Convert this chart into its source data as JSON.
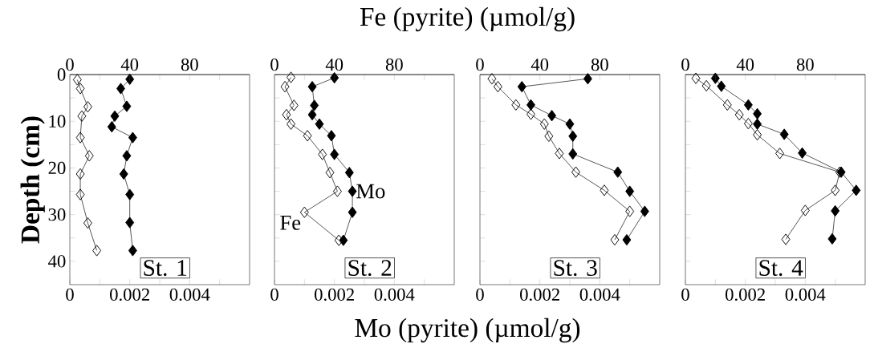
{
  "chart_data": [
    {
      "type": "line",
      "title": "St. 1",
      "ylabel": "Depth (cm)",
      "x2label": "Fe (pyrite) (µmol/g)",
      "xlabel": "Mo (pyrite) (µmol/g)",
      "marker": "diamond",
      "xlim": [
        0,
        0.006
      ],
      "xticks": [
        0,
        {
          "value": 0.001,
          "label": null
        },
        0.002,
        {
          "value": 0.003,
          "label": null
        },
        0.004,
        {
          "value": 0.005,
          "label": null
        }
      ],
      "x2lim": [
        0,
        120
      ],
      "x2ticks": [
        0,
        {
          "value": 20,
          "label": null
        },
        40,
        {
          "value": 60,
          "label": null
        },
        80,
        {
          "value": 100,
          "label": null
        }
      ],
      "ylim": [
        45,
        0
      ],
      "yticks": [
        0,
        {
          "value": 5,
          "label": null
        },
        10,
        {
          "value": 15,
          "label": null
        },
        20,
        {
          "value": 25,
          "label": null
        },
        30,
        {
          "value": 35,
          "label": null
        },
        40
      ],
      "series": [
        {
          "color": "#000000",
          "x": [
            0.002,
            0.0017,
            0.0019,
            0.0015,
            0.0014,
            0.0021,
            0.0019,
            0.0018,
            0.002,
            0.002,
            0.0021
          ],
          "values": [
            1.0,
            3.0,
            6.8,
            8.9,
            11.2,
            13.5,
            17.4,
            21.3,
            25.7,
            31.7,
            37.7
          ]
        },
        {
          "color": "#000000",
          "axis": "x2",
          "x": [
            5,
            7,
            12,
            8,
            7,
            13,
            7,
            7,
            12,
            18
          ],
          "values": [
            1.1,
            3.0,
            6.9,
            8.9,
            13.5,
            17.4,
            21.3,
            25.7,
            31.8,
            37.7
          ]
        }
      ]
    },
    {
      "type": "line",
      "title": "St. 2",
      "marker": "diamond",
      "tick_labels": "x",
      "xlim": [
        0,
        0.006
      ],
      "xticks": [
        0,
        {
          "value": 0.001,
          "label": null
        },
        0.002,
        {
          "value": 0.003,
          "label": null
        },
        0.004,
        {
          "value": 0.005,
          "label": null
        }
      ],
      "x2lim": [
        0,
        120
      ],
      "x2ticks": [
        0,
        {
          "value": 20,
          "label": null
        },
        40,
        {
          "value": 60,
          "label": null
        },
        80,
        {
          "value": 100,
          "label": null
        }
      ],
      "ylim": [
        45,
        0
      ],
      "yticks": [
        0,
        5,
        10,
        15,
        20,
        25,
        30,
        35,
        40
      ],
      "annotations": [
        {
          "text": "Mo",
          "x": 0.0026,
          "y": 25.0
        },
        {
          "text": "Fe",
          "x": 0.001,
          "y": 29.5
        }
      ],
      "series": [
        {
          "color": "#000000",
          "x": [
            0.002,
            0.00126,
            0.00133,
            0.00126,
            0.0015,
            0.0019,
            0.002,
            0.0025,
            0.0026,
            0.0026,
            0.0023
          ],
          "values": [
            0.7,
            2.6,
            6.6,
            8.6,
            10.6,
            13.1,
            17.1,
            21.0,
            25.0,
            29.5,
            35.5
          ]
        },
        {
          "color": "#000000",
          "axis": "x2",
          "x": [
            11,
            7,
            13,
            8,
            11,
            22,
            32,
            37,
            42,
            20,
            43
          ],
          "values": [
            0.6,
            2.6,
            6.6,
            8.6,
            10.6,
            13.1,
            17.1,
            21.0,
            25.0,
            29.5,
            35.5
          ]
        }
      ]
    },
    {
      "type": "line",
      "title": "St. 3",
      "marker": "diamond",
      "tick_labels": "x",
      "xlim": [
        0,
        0.006
      ],
      "xticks": [
        0,
        {
          "value": 0.001,
          "label": null
        },
        0.002,
        {
          "value": 0.003,
          "label": null
        },
        0.004,
        {
          "value": 0.005,
          "label": null
        }
      ],
      "x2lim": [
        0,
        120
      ],
      "x2ticks": [
        0,
        {
          "value": 20,
          "label": null
        },
        40,
        {
          "value": 60,
          "label": null
        },
        80,
        {
          "value": 100,
          "label": null
        }
      ],
      "ylim": [
        45,
        0
      ],
      "yticks": [
        0,
        5,
        10,
        15,
        20,
        25,
        30,
        35,
        40
      ],
      "series": [
        {
          "color": "#000000",
          "x": [
            0.0036,
            0.0014,
            0.0017,
            0.0024,
            0.003,
            0.0031,
            0.0031,
            0.0046,
            0.005,
            0.0055,
            0.0049
          ],
          "values": [
            0.9,
            2.6,
            6.5,
            8.8,
            10.6,
            13.2,
            17.0,
            20.9,
            25.0,
            29.3,
            35.4
          ]
        },
        {
          "color": "#000000",
          "axis": "x2",
          "x": [
            8,
            12,
            24,
            34,
            43,
            46,
            53,
            64,
            83,
            100,
            90
          ],
          "values": [
            0.9,
            2.6,
            6.5,
            8.5,
            10.6,
            13.2,
            16.9,
            20.9,
            24.8,
            29.3,
            35.4
          ]
        }
      ]
    },
    {
      "type": "line",
      "title": "St. 4",
      "marker": "diamond",
      "tick_labels": "x",
      "xlim": [
        0,
        0.006
      ],
      "xticks": [
        0,
        {
          "value": 0.001,
          "label": null
        },
        0.002,
        {
          "value": 0.003,
          "label": null
        },
        0.004,
        {
          "value": 0.005,
          "label": null
        }
      ],
      "x2lim": [
        0,
        120
      ],
      "x2ticks": [
        0,
        {
          "value": 20,
          "label": null
        },
        40,
        {
          "value": 60,
          "label": null
        },
        80,
        {
          "value": 100,
          "label": null
        }
      ],
      "ylim": [
        45,
        0
      ],
      "yticks": [
        0,
        5,
        10,
        15,
        20,
        25,
        30,
        35,
        40
      ],
      "series": [
        {
          "color": "#000000",
          "x": [
            0.001,
            0.0012,
            0.0021,
            0.0024,
            0.0024,
            0.0033,
            0.0039,
            0.0052,
            0.0057,
            0.005,
            0.0049
          ],
          "values": [
            0.8,
            2.5,
            6.5,
            8.4,
            10.6,
            12.8,
            16.8,
            20.9,
            24.8,
            29.2,
            35.2
          ]
        },
        {
          "color": "#000000",
          "axis": "x2",
          "x": [
            7,
            14,
            28,
            36,
            42,
            48,
            63,
            103,
            100,
            80,
            67
          ],
          "values": [
            0.8,
            2.4,
            6.5,
            8.6,
            10.5,
            12.9,
            16.9,
            20.9,
            24.8,
            29.1,
            35.3
          ]
        }
      ]
    }
  ]
}
